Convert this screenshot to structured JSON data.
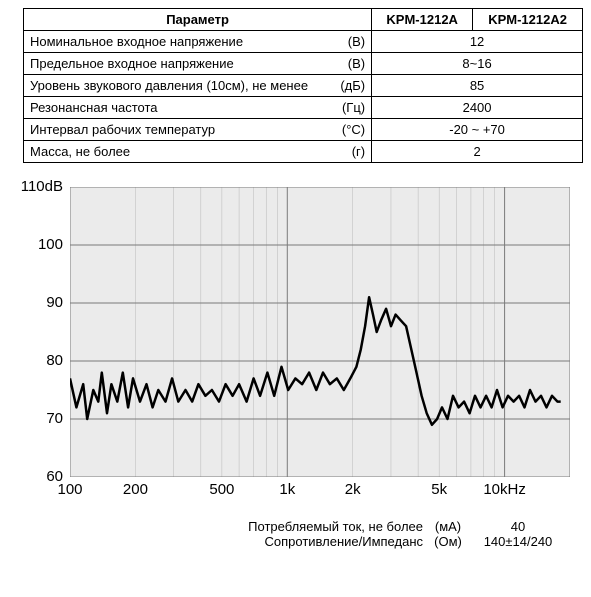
{
  "table": {
    "header": {
      "param": "Параметр",
      "col1": "KPM-1212A",
      "col2": "KPM-1212A2"
    },
    "rows": [
      {
        "label": "Номинальное входное напряжение",
        "unit": "(В)",
        "value": "12"
      },
      {
        "label": "Предельное входное напряжение",
        "unit": "(В)",
        "value": "8~16"
      },
      {
        "label": "Уровень звукового давления (10см), не менее",
        "unit": "(дБ)",
        "value": "85"
      },
      {
        "label": "Резонансная частота",
        "unit": "(Гц)",
        "value": "2400"
      },
      {
        "label": "Интервал рабочих температур",
        "unit": "(°C)",
        "value": "-20 ~ +70"
      },
      {
        "label": "Масса, не более",
        "unit": "(г)",
        "value": "2"
      }
    ]
  },
  "chart": {
    "type": "line",
    "background_color": "#ebebeb",
    "grid_color_minor": "#b8b8b8",
    "grid_color_major": "#7a7a7a",
    "line_color": "#000000",
    "line_width": 2.5,
    "y": {
      "min": 60,
      "max": 110,
      "ticks": [
        60,
        70,
        80,
        90,
        100,
        110
      ],
      "top_label": "110dB"
    },
    "x": {
      "scale": "log",
      "min": 100,
      "max": 20000,
      "ticks": [
        100,
        200,
        500,
        1000,
        2000,
        5000,
        10000
      ],
      "tick_labels": [
        "100",
        "200",
        "500",
        "1k",
        "2k",
        "5k",
        "10kHz"
      ],
      "minor_per_decade": [
        1,
        2,
        3,
        4,
        5,
        6,
        7,
        8,
        9
      ]
    },
    "data": [
      [
        100,
        77
      ],
      [
        107,
        72
      ],
      [
        115,
        76
      ],
      [
        120,
        70
      ],
      [
        128,
        75
      ],
      [
        135,
        73
      ],
      [
        140,
        78
      ],
      [
        148,
        71
      ],
      [
        155,
        76
      ],
      [
        165,
        73
      ],
      [
        175,
        78
      ],
      [
        185,
        72
      ],
      [
        195,
        77
      ],
      [
        210,
        73
      ],
      [
        225,
        76
      ],
      [
        240,
        72
      ],
      [
        255,
        75
      ],
      [
        275,
        73
      ],
      [
        295,
        77
      ],
      [
        315,
        73
      ],
      [
        340,
        75
      ],
      [
        365,
        73
      ],
      [
        390,
        76
      ],
      [
        420,
        74
      ],
      [
        450,
        75
      ],
      [
        485,
        73
      ],
      [
        520,
        76
      ],
      [
        560,
        74
      ],
      [
        600,
        76
      ],
      [
        650,
        73
      ],
      [
        700,
        77
      ],
      [
        750,
        74
      ],
      [
        810,
        78
      ],
      [
        870,
        74
      ],
      [
        940,
        79
      ],
      [
        1010,
        75
      ],
      [
        1090,
        77
      ],
      [
        1170,
        76
      ],
      [
        1260,
        78
      ],
      [
        1360,
        75
      ],
      [
        1460,
        78
      ],
      [
        1570,
        76
      ],
      [
        1690,
        77
      ],
      [
        1820,
        75
      ],
      [
        1950,
        77
      ],
      [
        2080,
        79
      ],
      [
        2180,
        82
      ],
      [
        2280,
        86
      ],
      [
        2380,
        91
      ],
      [
        2480,
        88
      ],
      [
        2580,
        85
      ],
      [
        2700,
        87
      ],
      [
        2850,
        89
      ],
      [
        3000,
        86
      ],
      [
        3150,
        88
      ],
      [
        3330,
        87
      ],
      [
        3520,
        86
      ],
      [
        3720,
        82
      ],
      [
        3930,
        78
      ],
      [
        4150,
        74
      ],
      [
        4380,
        71
      ],
      [
        4630,
        69
      ],
      [
        4890,
        70
      ],
      [
        5150,
        72
      ],
      [
        5460,
        70
      ],
      [
        5790,
        74
      ],
      [
        6140,
        72
      ],
      [
        6510,
        73
      ],
      [
        6900,
        71
      ],
      [
        7310,
        74
      ],
      [
        7750,
        72
      ],
      [
        8220,
        74
      ],
      [
        8710,
        72
      ],
      [
        9230,
        75
      ],
      [
        9790,
        72
      ],
      [
        10370,
        74
      ],
      [
        11000,
        73
      ],
      [
        11660,
        74
      ],
      [
        12350,
        72
      ],
      [
        13090,
        75
      ],
      [
        13880,
        73
      ],
      [
        14710,
        74
      ],
      [
        15590,
        72
      ],
      [
        16530,
        74
      ],
      [
        17520,
        73
      ],
      [
        18120,
        73
      ]
    ]
  },
  "footer": {
    "rows": [
      {
        "label": "Потребляемый ток, не более",
        "unit": "(мА)",
        "value": "40"
      },
      {
        "label": "Сопротивление/Импеданс",
        "unit": "(Ом)",
        "value": "140±14/240"
      }
    ]
  }
}
